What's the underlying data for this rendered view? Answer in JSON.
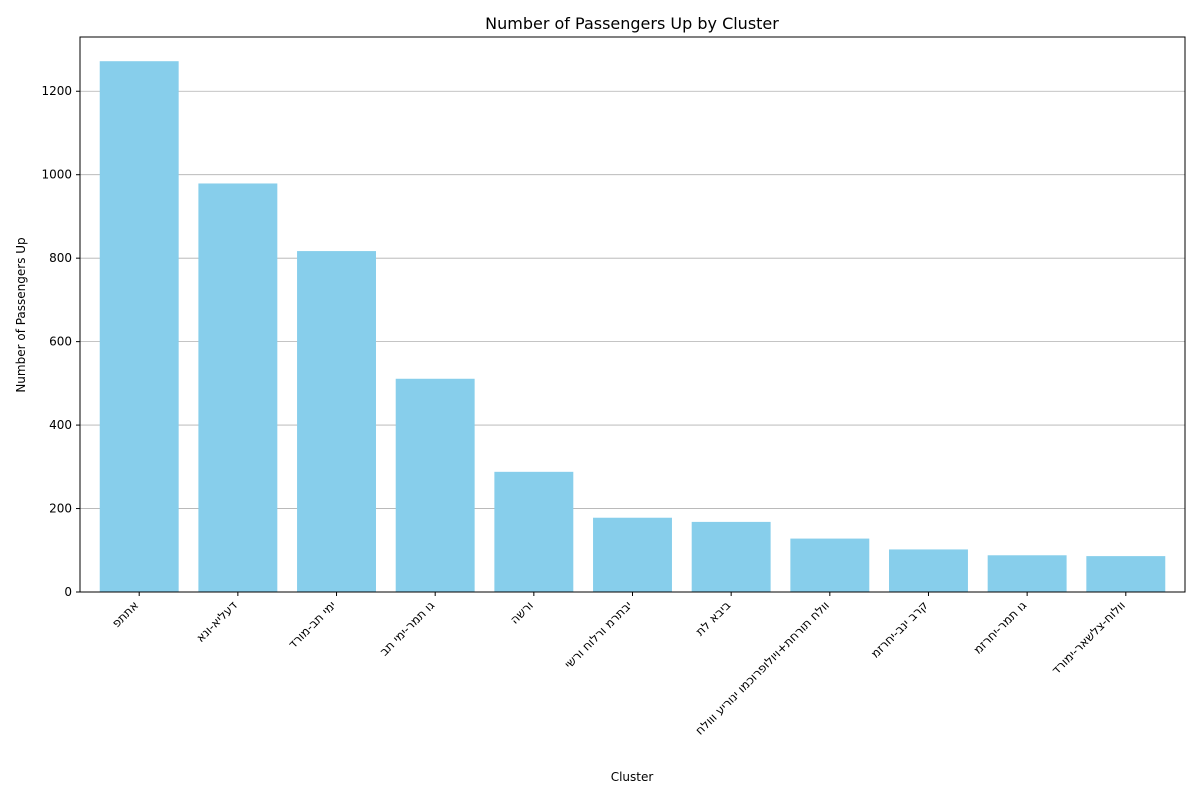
{
  "chart_data": {
    "type": "bar",
    "title": "Number of Passengers Up by Cluster",
    "xlabel": "Cluster",
    "ylabel": "Number of Passengers Up",
    "categories": [
      "אתתפ",
      "דעליא-ונא",
      "ימי תב-מורד",
      "גו תמר-ימי תב",
      "ורשה",
      "יבתרמ ורלוח ורשי",
      "ביבא לת",
      "וולח תורחת+ויולופרוכמו ינוריע ווולח",
      "קרב ינב-יחרזמ",
      "גו תמר-יחרזמ",
      "וולוח-צלשאר-ימורד"
    ],
    "values": [
      1272,
      979,
      817,
      511,
      288,
      178,
      168,
      128,
      102,
      88,
      86
    ],
    "ylim": [
      0,
      1330
    ],
    "yticks": [
      0,
      200,
      400,
      600,
      800,
      1000,
      1200
    ],
    "grid": "y",
    "bar_color": "#87CEEB"
  }
}
